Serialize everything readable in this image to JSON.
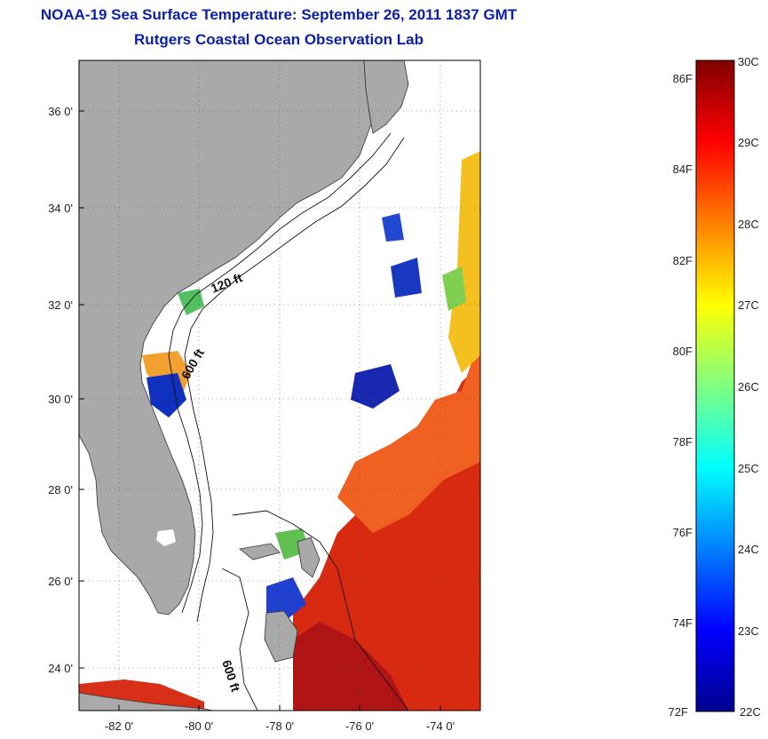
{
  "title": {
    "line1": "NOAA-19 Sea Surface Temperature:  September 26, 2011 1837 GMT",
    "line2": "Rutgers Coastal Ocean Observation Lab"
  },
  "map": {
    "lon_range": [
      -83,
      -73
    ],
    "lat_range": [
      23,
      37
    ],
    "x_ticks": [
      "-82 0'",
      "-80 0'",
      "-78 0'",
      "-76 0'",
      "-74 0'"
    ],
    "y_ticks": [
      "24 0'",
      "26 0'",
      "28 0'",
      "30 0'",
      "32 0'",
      "34 0'",
      "36 0'"
    ],
    "contour_labels": [
      "120 ft",
      "600 ft",
      "600 ft"
    ],
    "colors": {
      "land": "#a9a9a9",
      "ocean_nodata": "#ffffff",
      "grid": "#444444",
      "title": "#0b1fa8"
    }
  },
  "colorbar": {
    "celsius_labels": [
      "30C",
      "29C",
      "28C",
      "27C",
      "26C",
      "25C",
      "24C",
      "23C",
      "22C"
    ],
    "fahrenheit_labels": [
      "86F",
      "84F",
      "82F",
      "80F",
      "78F",
      "76F",
      "74F",
      "72F"
    ],
    "colormap": "jet",
    "range_c": [
      22,
      30
    ]
  }
}
